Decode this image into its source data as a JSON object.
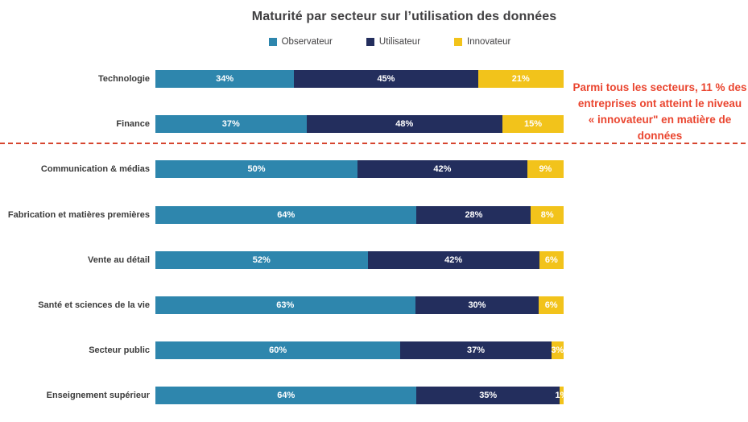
{
  "title": "Maturité par secteur sur l’utilisation des données",
  "legend": [
    {
      "label": "Observateur",
      "color": "#2E86AD",
      "icon": "observateur-swatch"
    },
    {
      "label": "Utilisateur",
      "color": "#232E5D",
      "icon": "utilisateur-swatch"
    },
    {
      "label": "Innovateur",
      "color": "#F2C31B",
      "icon": "innovateur-swatch"
    }
  ],
  "chart_data": {
    "type": "bar",
    "orientation": "horizontal",
    "stacked": true,
    "title": "Maturité par secteur sur l’utilisation des données",
    "categories": [
      "Technologie",
      "Finance",
      "Communication & médias",
      "Fabrication et matières premières",
      "Vente au détail",
      "Santé et sciences de la vie",
      "Secteur public",
      "Enseignement supérieur"
    ],
    "series": [
      {
        "name": "Observateur",
        "color": "#2E86AD",
        "values": [
          34,
          37,
          50,
          64,
          52,
          63,
          60,
          64
        ]
      },
      {
        "name": "Utilisateur",
        "color": "#232E5D",
        "values": [
          45,
          48,
          42,
          28,
          42,
          30,
          37,
          35
        ]
      },
      {
        "name": "Innovateur",
        "color": "#F2C31B",
        "values": [
          21,
          15,
          9,
          8,
          6,
          6,
          3,
          1
        ]
      }
    ],
    "value_label_format": "{v}%",
    "xlim": [
      0,
      100
    ],
    "grid": false,
    "legend_position": "top",
    "separator_after_category": "Finance"
  },
  "annotation": {
    "lines": [
      "Parmi tous les secteurs, 11 % des",
      "entreprises ont atteint le niveau",
      "« innovateur\" en matière de",
      "données"
    ],
    "color": "#EA452F"
  },
  "colors": {
    "observateur": "#2E86AD",
    "utilisateur": "#232E5D",
    "innovateur": "#F2C31B",
    "title_text": "#414042",
    "category_text": "#3B3B3B",
    "value_text": "#FFFFFF",
    "annotation_red": "#EA452F",
    "separator_red": "#D6452F",
    "background": "#FFFFFF"
  }
}
